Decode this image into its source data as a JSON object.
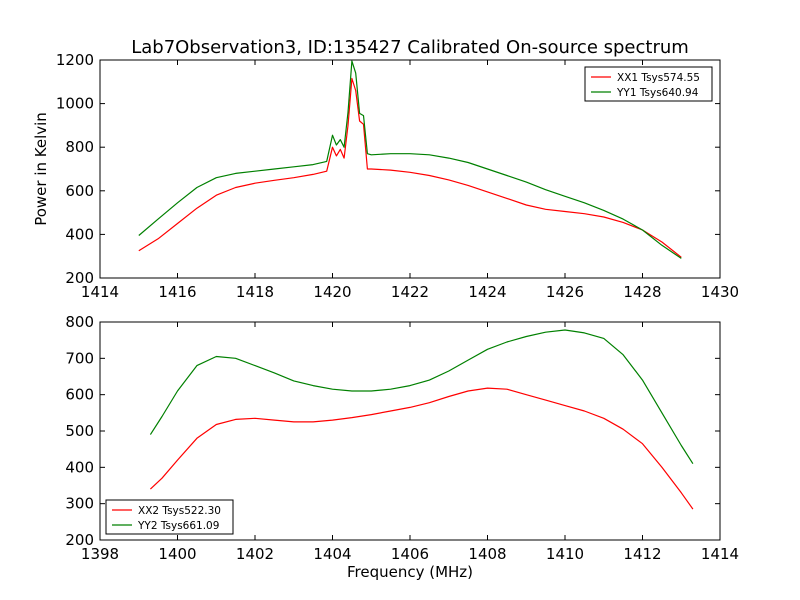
{
  "figure": {
    "title": "Lab7Observation3, ID:135427 Calibrated On-source spectrum",
    "ylabel": "Power in Kelvin",
    "xlabel": "Frequency (MHz)"
  },
  "chart_data": [
    {
      "type": "line",
      "title": "Lab7Observation3, ID:135427 Calibrated On-source spectrum",
      "xlabel": "",
      "ylabel": "Power in Kelvin",
      "xlim": [
        1414,
        1430
      ],
      "ylim": [
        200,
        1200
      ],
      "xticks": [
        1414,
        1416,
        1418,
        1420,
        1422,
        1424,
        1426,
        1428,
        1430
      ],
      "yticks": [
        200,
        400,
        600,
        800,
        1000,
        1200
      ],
      "legend_position": "top-right",
      "grid": false,
      "series": [
        {
          "name": "XX1 Tsys574.55",
          "color": "#ff0000",
          "points": [
            [
              1415.0,
              325
            ],
            [
              1415.5,
              380
            ],
            [
              1416.0,
              450
            ],
            [
              1416.5,
              520
            ],
            [
              1417.0,
              580
            ],
            [
              1417.5,
              615
            ],
            [
              1418.0,
              635
            ],
            [
              1418.5,
              648
            ],
            [
              1419.0,
              660
            ],
            [
              1419.5,
              675
            ],
            [
              1419.85,
              690
            ],
            [
              1420.0,
              800
            ],
            [
              1420.1,
              760
            ],
            [
              1420.2,
              790
            ],
            [
              1420.3,
              750
            ],
            [
              1420.4,
              900
            ],
            [
              1420.5,
              1115
            ],
            [
              1420.6,
              1060
            ],
            [
              1420.7,
              920
            ],
            [
              1420.8,
              905
            ],
            [
              1420.9,
              700
            ],
            [
              1421.0,
              700
            ],
            [
              1421.5,
              695
            ],
            [
              1422.0,
              685
            ],
            [
              1422.5,
              670
            ],
            [
              1423.0,
              650
            ],
            [
              1423.5,
              625
            ],
            [
              1424.0,
              595
            ],
            [
              1424.5,
              565
            ],
            [
              1425.0,
              535
            ],
            [
              1425.5,
              515
            ],
            [
              1426.0,
              505
            ],
            [
              1426.5,
              495
            ],
            [
              1427.0,
              480
            ],
            [
              1427.5,
              455
            ],
            [
              1428.0,
              420
            ],
            [
              1428.5,
              365
            ],
            [
              1429.0,
              295
            ]
          ]
        },
        {
          "name": "YY1 Tsys640.94",
          "color": "#008000",
          "points": [
            [
              1415.0,
              395
            ],
            [
              1415.5,
              470
            ],
            [
              1416.0,
              545
            ],
            [
              1416.5,
              615
            ],
            [
              1417.0,
              660
            ],
            [
              1417.5,
              680
            ],
            [
              1418.0,
              690
            ],
            [
              1418.5,
              700
            ],
            [
              1419.0,
              710
            ],
            [
              1419.5,
              720
            ],
            [
              1419.85,
              735
            ],
            [
              1420.0,
              855
            ],
            [
              1420.1,
              810
            ],
            [
              1420.2,
              835
            ],
            [
              1420.3,
              800
            ],
            [
              1420.4,
              960
            ],
            [
              1420.5,
              1195
            ],
            [
              1420.6,
              1140
            ],
            [
              1420.7,
              955
            ],
            [
              1420.8,
              945
            ],
            [
              1420.9,
              770
            ],
            [
              1421.0,
              765
            ],
            [
              1421.5,
              770
            ],
            [
              1422.0,
              770
            ],
            [
              1422.5,
              765
            ],
            [
              1423.0,
              750
            ],
            [
              1423.5,
              730
            ],
            [
              1424.0,
              700
            ],
            [
              1424.5,
              670
            ],
            [
              1425.0,
              640
            ],
            [
              1425.5,
              605
            ],
            [
              1426.0,
              575
            ],
            [
              1426.5,
              545
            ],
            [
              1427.0,
              510
            ],
            [
              1427.5,
              470
            ],
            [
              1428.0,
              420
            ],
            [
              1428.5,
              350
            ],
            [
              1429.0,
              290
            ]
          ]
        }
      ]
    },
    {
      "type": "line",
      "title": "",
      "xlabel": "Frequency (MHz)",
      "ylabel": "",
      "xlim": [
        1398,
        1414
      ],
      "ylim": [
        200,
        800
      ],
      "xticks": [
        1398,
        1400,
        1402,
        1404,
        1406,
        1408,
        1410,
        1412,
        1414
      ],
      "yticks": [
        200,
        300,
        400,
        500,
        600,
        700,
        800
      ],
      "legend_position": "bottom-left",
      "grid": false,
      "series": [
        {
          "name": "XX2 Tsys522.30",
          "color": "#ff0000",
          "points": [
            [
              1399.3,
              340
            ],
            [
              1399.6,
              370
            ],
            [
              1400.0,
              420
            ],
            [
              1400.5,
              480
            ],
            [
              1401.0,
              518
            ],
            [
              1401.5,
              532
            ],
            [
              1402.0,
              535
            ],
            [
              1402.5,
              530
            ],
            [
              1403.0,
              525
            ],
            [
              1403.5,
              525
            ],
            [
              1404.0,
              530
            ],
            [
              1404.5,
              537
            ],
            [
              1405.0,
              545
            ],
            [
              1405.5,
              555
            ],
            [
              1406.0,
              565
            ],
            [
              1406.5,
              578
            ],
            [
              1407.0,
              595
            ],
            [
              1407.5,
              610
            ],
            [
              1408.0,
              618
            ],
            [
              1408.5,
              615
            ],
            [
              1409.0,
              600
            ],
            [
              1409.5,
              585
            ],
            [
              1410.0,
              570
            ],
            [
              1410.5,
              555
            ],
            [
              1411.0,
              535
            ],
            [
              1411.5,
              505
            ],
            [
              1412.0,
              465
            ],
            [
              1412.5,
              400
            ],
            [
              1413.0,
              330
            ],
            [
              1413.3,
              285
            ]
          ]
        },
        {
          "name": "YY2 Tsys661.09",
          "color": "#008000",
          "points": [
            [
              1399.3,
              490
            ],
            [
              1399.6,
              540
            ],
            [
              1400.0,
              610
            ],
            [
              1400.5,
              680
            ],
            [
              1401.0,
              705
            ],
            [
              1401.5,
              700
            ],
            [
              1402.0,
              680
            ],
            [
              1402.5,
              660
            ],
            [
              1403.0,
              638
            ],
            [
              1403.5,
              625
            ],
            [
              1404.0,
              615
            ],
            [
              1404.5,
              610
            ],
            [
              1405.0,
              610
            ],
            [
              1405.5,
              615
            ],
            [
              1406.0,
              625
            ],
            [
              1406.5,
              640
            ],
            [
              1407.0,
              665
            ],
            [
              1407.5,
              695
            ],
            [
              1408.0,
              725
            ],
            [
              1408.5,
              745
            ],
            [
              1409.0,
              760
            ],
            [
              1409.5,
              772
            ],
            [
              1410.0,
              778
            ],
            [
              1410.5,
              770
            ],
            [
              1411.0,
              755
            ],
            [
              1411.5,
              710
            ],
            [
              1412.0,
              640
            ],
            [
              1412.5,
              550
            ],
            [
              1413.0,
              460
            ],
            [
              1413.3,
              410
            ]
          ]
        }
      ]
    }
  ]
}
